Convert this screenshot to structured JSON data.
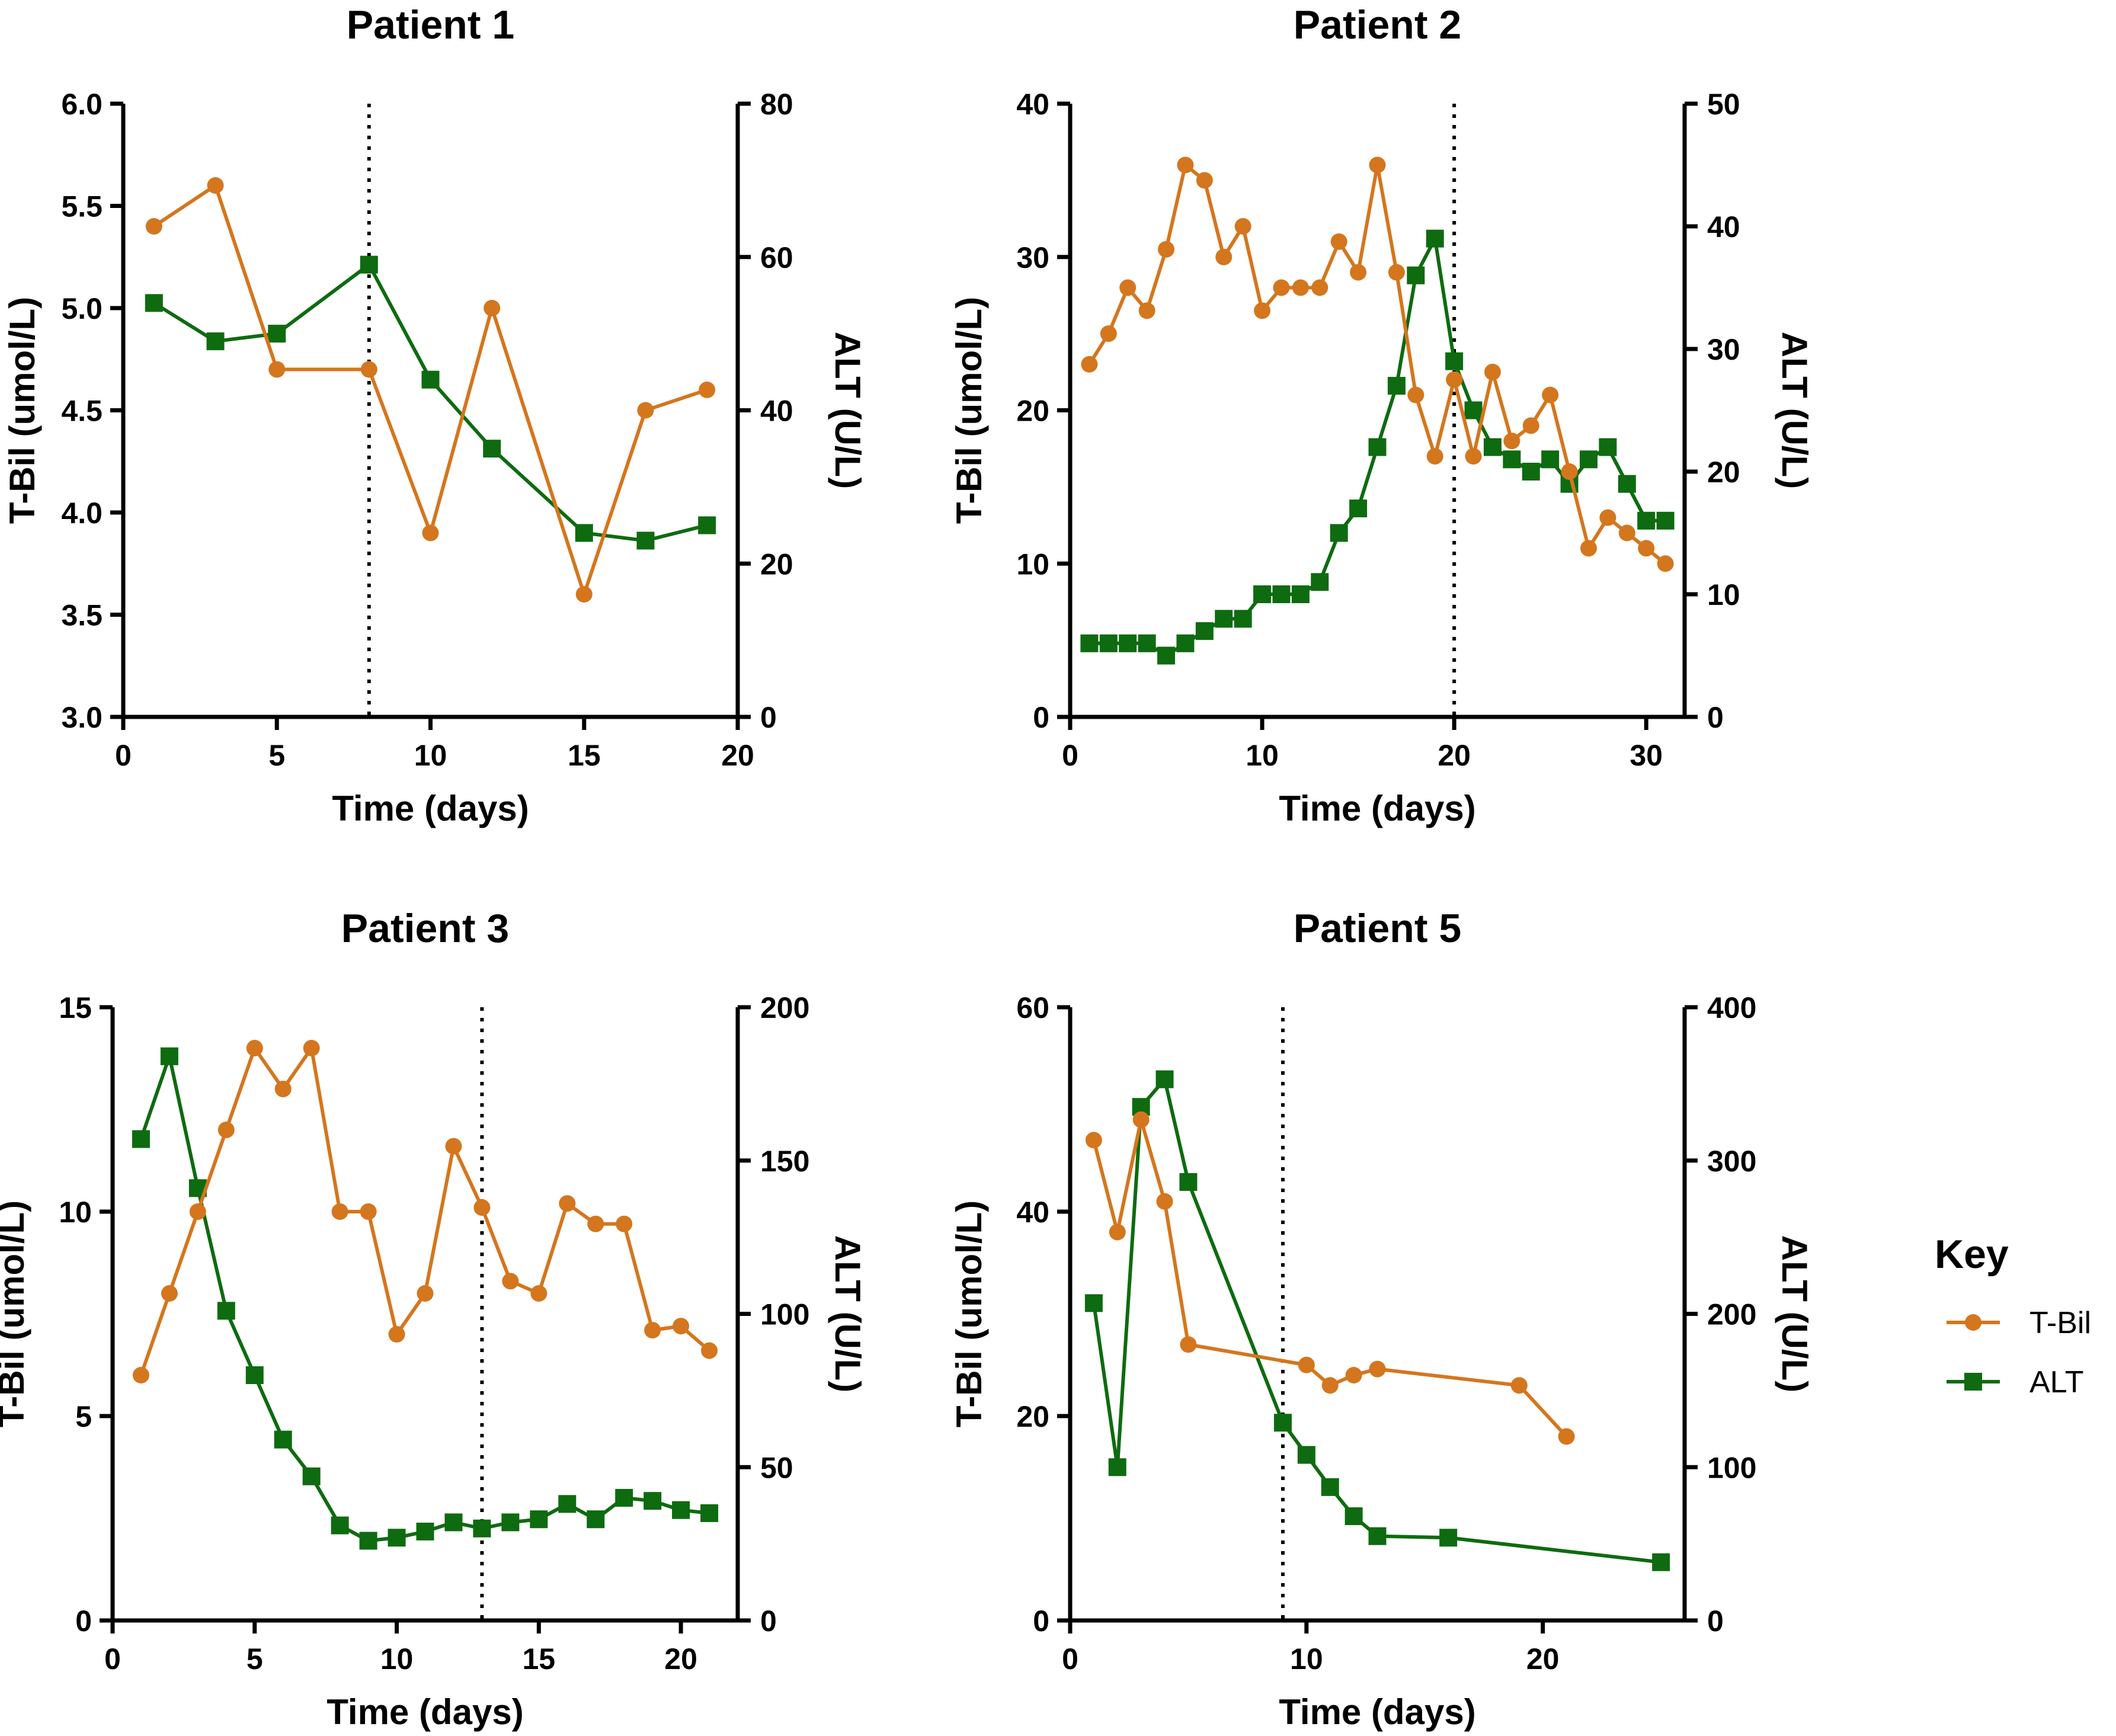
{
  "chart_data": [
    {
      "type": "line",
      "title": "Patient 1",
      "xlabel": "Time (days)",
      "ylabel_left": "T-Bil (umol/L)",
      "ylabel_right": "ALT (U/L)",
      "xlim": [
        0,
        20
      ],
      "x_ticks": [
        0,
        5,
        10,
        15,
        20
      ],
      "ylim_left": [
        3.0,
        6.0
      ],
      "y_ticks_left": [
        3.0,
        3.5,
        4.0,
        4.5,
        5.0,
        5.5,
        6.0
      ],
      "y_tick_labels_left": [
        "3.0",
        "3.5",
        "4.0",
        "4.5",
        "5.0",
        "5.5",
        "6.0"
      ],
      "ylim_right": [
        0,
        80
      ],
      "y_ticks_right": [
        0,
        20,
        40,
        60,
        80
      ],
      "event_day": 8,
      "series": [
        {
          "name": "T-Bil",
          "axis": "left",
          "marker": "circle",
          "color": "#d4761e",
          "x": [
            1,
            3,
            5,
            8,
            10,
            12,
            15,
            17,
            19
          ],
          "y": [
            5.4,
            5.6,
            4.7,
            4.7,
            3.9,
            5.0,
            3.6,
            4.5,
            4.6
          ]
        },
        {
          "name": "ALT",
          "axis": "right",
          "marker": "square",
          "color": "#0e6b10",
          "x": [
            1,
            3,
            5,
            8,
            10,
            12,
            15,
            17,
            19
          ],
          "y": [
            54,
            49,
            50,
            59,
            44,
            35,
            24,
            23,
            25
          ]
        }
      ]
    },
    {
      "type": "line",
      "title": "Patient 2",
      "xlabel": "Time (days)",
      "ylabel_left": "T-Bil (umol/L)",
      "ylabel_right": "ALT (U/L)",
      "xlim": [
        0,
        32
      ],
      "x_ticks": [
        0,
        10,
        20,
        30
      ],
      "ylim_left": [
        0,
        40
      ],
      "y_ticks_left": [
        0,
        10,
        20,
        30,
        40
      ],
      "ylim_right": [
        0,
        50
      ],
      "y_ticks_right": [
        0,
        10,
        20,
        30,
        40,
        50
      ],
      "event_day": 20,
      "series": [
        {
          "name": "T-Bil",
          "axis": "left",
          "marker": "circle",
          "color": "#d4761e",
          "x": [
            1,
            2,
            3,
            4,
            5,
            6,
            7,
            8,
            9,
            10,
            11,
            12,
            13,
            14,
            15,
            16,
            17,
            18,
            19,
            20,
            21,
            22,
            23,
            24,
            25,
            26,
            27,
            28,
            29,
            30,
            31
          ],
          "y": [
            23,
            25,
            28,
            26.5,
            30.5,
            36,
            35,
            30,
            32,
            26.5,
            28,
            28,
            28,
            31,
            29,
            36,
            29,
            21,
            17,
            22,
            17,
            22.5,
            18,
            19,
            21,
            16,
            11,
            13,
            12,
            11,
            10
          ]
        },
        {
          "name": "ALT",
          "axis": "right",
          "marker": "square",
          "color": "#0e6b10",
          "x": [
            1,
            2,
            3,
            4,
            5,
            6,
            7,
            8,
            9,
            10,
            11,
            12,
            13,
            14,
            15,
            16,
            17,
            18,
            19,
            20,
            21,
            22,
            23,
            24,
            25,
            26,
            27,
            28,
            29,
            30,
            31
          ],
          "y": [
            6,
            6,
            6,
            6,
            5,
            6,
            7,
            8,
            8,
            10,
            10,
            10,
            11,
            15,
            17,
            22,
            27,
            36,
            39,
            29,
            25,
            22,
            21,
            20,
            21,
            19,
            21,
            22,
            19,
            16,
            16
          ]
        }
      ]
    },
    {
      "type": "line",
      "title": "Patient 3",
      "xlabel": "Time (days)",
      "ylabel_left": "T-Bil (umol/L)",
      "ylabel_right": "ALT (U/L)",
      "xlim": [
        0,
        22
      ],
      "x_ticks": [
        0,
        5,
        10,
        15,
        20
      ],
      "ylim_left": [
        0,
        15
      ],
      "y_ticks_left": [
        0,
        5,
        10,
        15
      ],
      "ylim_right": [
        0,
        200
      ],
      "y_ticks_right": [
        0,
        50,
        100,
        150,
        200
      ],
      "event_day": 13,
      "series": [
        {
          "name": "T-Bil",
          "axis": "left",
          "marker": "circle",
          "color": "#d4761e",
          "x": [
            1,
            2,
            3,
            4,
            5,
            6,
            7,
            8,
            9,
            10,
            11,
            12,
            13,
            14,
            15,
            16,
            17,
            18,
            19,
            20,
            21
          ],
          "y": [
            6,
            8,
            10,
            12,
            14,
            13,
            14,
            10,
            10,
            7,
            8,
            11.6,
            10.1,
            8.3,
            8,
            10.2,
            9.7,
            9.7,
            7.1,
            7.2,
            6.6
          ]
        },
        {
          "name": "ALT",
          "axis": "right",
          "marker": "square",
          "color": "#0e6b10",
          "x": [
            1,
            2,
            3,
            4,
            5,
            6,
            7,
            8,
            9,
            10,
            11,
            12,
            13,
            14,
            15,
            16,
            17,
            18,
            19,
            20,
            21
          ],
          "y": [
            157,
            184,
            141,
            101,
            80,
            59,
            47,
            31,
            26,
            27,
            29,
            32,
            30,
            32,
            33,
            38,
            33,
            40,
            39,
            36,
            35
          ]
        }
      ]
    },
    {
      "type": "line",
      "title": "Patient 5",
      "xlabel": "Time (days)",
      "ylabel_left": "T-Bil (umol/L)",
      "ylabel_right": "ALT (U/L)",
      "xlim": [
        0,
        26
      ],
      "x_ticks": [
        0,
        10,
        20
      ],
      "ylim_left": [
        0,
        60
      ],
      "y_ticks_left": [
        0,
        20,
        40,
        60
      ],
      "ylim_right": [
        0,
        400
      ],
      "y_ticks_right": [
        0,
        100,
        200,
        300,
        400
      ],
      "event_day": 9,
      "series": [
        {
          "name": "T-Bil",
          "axis": "left",
          "marker": "circle",
          "color": "#d4761e",
          "x": [
            1,
            2,
            3,
            4,
            5,
            10,
            11,
            12,
            13,
            19,
            21
          ],
          "y": [
            47,
            38,
            49,
            41,
            27,
            25,
            23,
            24,
            24.6,
            23,
            18
          ]
        },
        {
          "name": "ALT",
          "axis": "right",
          "marker": "square",
          "color": "#0e6b10",
          "x": [
            1,
            2,
            3,
            4,
            5,
            9,
            10,
            11,
            12,
            13,
            16,
            25
          ],
          "y": [
            207,
            100,
            335,
            353,
            286,
            129,
            108,
            87,
            68,
            55,
            54,
            38
          ]
        }
      ]
    }
  ],
  "legend": {
    "title": "Key",
    "entries": [
      {
        "label": "T-Bil",
        "marker": "circle",
        "color": "#d4761e"
      },
      {
        "label": "ALT",
        "marker": "square",
        "color": "#0e6b10"
      }
    ]
  }
}
